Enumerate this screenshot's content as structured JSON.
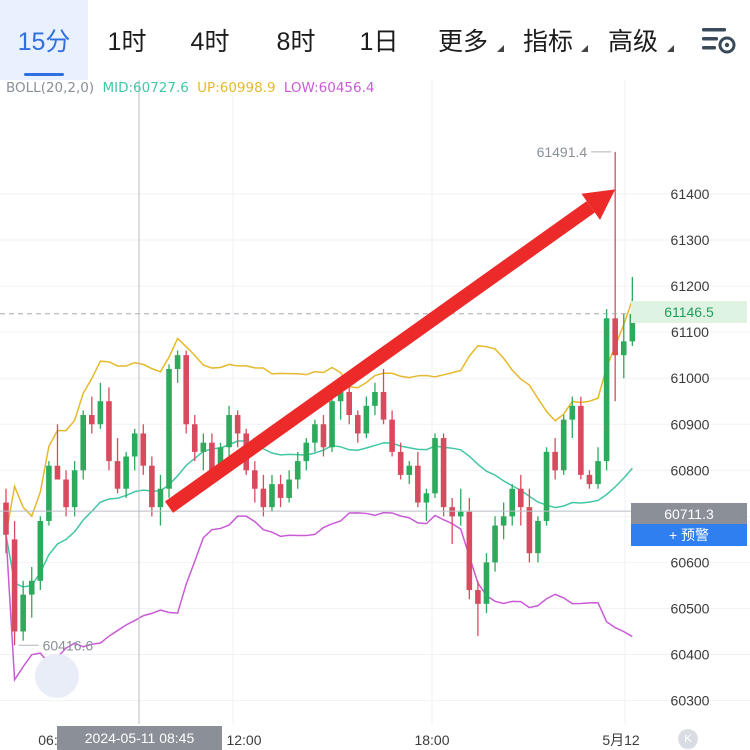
{
  "tabs": [
    {
      "label": "15分",
      "active": true
    },
    {
      "label": "1时"
    },
    {
      "label": "4时"
    },
    {
      "label": "8时"
    },
    {
      "label": "1日"
    },
    {
      "label": "更多",
      "dropdown": true
    },
    {
      "label": "指标",
      "dropdown": true
    },
    {
      "label": "高级",
      "dropdown": true
    }
  ],
  "indicator": {
    "name": "BOLL(20,2,0)",
    "mid": "MID:60727.6",
    "up": "UP:60998.9",
    "low": "LOW:60456.4"
  },
  "labels": {
    "high": "61491.4",
    "low": "60416.6",
    "current_price": "61146.5",
    "crosshair_price": "60711.3",
    "crosshair_time": "2024-05-11 08:45",
    "alert_button": "+ 预警",
    "reset_icon": "K"
  },
  "colors": {
    "up": "#2eaa5c",
    "down": "#d84b5f",
    "mid": "#42c7a6",
    "upper": "#e5b92c",
    "lower": "#c95bd6",
    "arrow": "#ec2a2a",
    "accent": "#2f6fe2"
  },
  "chart_data": {
    "type": "candlestick",
    "interval": "15分",
    "y_ticks": [
      61400,
      61300,
      61200,
      61100,
      61000,
      60900,
      60800,
      60700,
      60600,
      60500,
      60400,
      60300
    ],
    "x_ticks": [
      "06:",
      "12:00",
      "18:00",
      "5月12"
    ],
    "ylim": [
      60260,
      61560
    ],
    "candles": [
      [
        60730,
        60760,
        60620,
        60660
      ],
      [
        60650,
        60690,
        60420,
        60450
      ],
      [
        60450,
        60560,
        60430,
        60530
      ],
      [
        60530,
        60590,
        60480,
        60560
      ],
      [
        60560,
        60700,
        60540,
        60690
      ],
      [
        60690,
        60820,
        60680,
        60810
      ],
      [
        60810,
        60900,
        60780,
        60780
      ],
      [
        60780,
        60800,
        60700,
        60720
      ],
      [
        60720,
        60820,
        60700,
        60800
      ],
      [
        60800,
        60930,
        60780,
        60920
      ],
      [
        60920,
        60960,
        60880,
        60900
      ],
      [
        60900,
        60990,
        60890,
        60950
      ],
      [
        60950,
        60980,
        60800,
        60820
      ],
      [
        60820,
        60870,
        60750,
        60760
      ],
      [
        60760,
        60840,
        60740,
        60830
      ],
      [
        60830,
        60890,
        60800,
        60880
      ],
      [
        60880,
        60900,
        60790,
        60810
      ],
      [
        60810,
        60830,
        60700,
        60720
      ],
      [
        60720,
        60790,
        60680,
        60760
      ],
      [
        60760,
        61030,
        60740,
        61020
      ],
      [
        61020,
        61060,
        60990,
        61050
      ],
      [
        61050,
        61060,
        60880,
        60900
      ],
      [
        60900,
        60920,
        60820,
        60840
      ],
      [
        60840,
        60880,
        60800,
        60860
      ],
      [
        60860,
        60880,
        60790,
        60800
      ],
      [
        60800,
        60860,
        60790,
        60850
      ],
      [
        60850,
        60940,
        60830,
        60920
      ],
      [
        60920,
        60930,
        60850,
        60880
      ],
      [
        60880,
        60890,
        60790,
        60800
      ],
      [
        60800,
        60820,
        60730,
        60760
      ],
      [
        60760,
        60790,
        60700,
        60720
      ],
      [
        60720,
        60790,
        60710,
        60770
      ],
      [
        60770,
        60790,
        60720,
        60740
      ],
      [
        60740,
        60800,
        60730,
        60780
      ],
      [
        60780,
        60840,
        60760,
        60820
      ],
      [
        60820,
        60870,
        60800,
        60860
      ],
      [
        60860,
        60910,
        60840,
        60900
      ],
      [
        60900,
        60920,
        60830,
        60850
      ],
      [
        60850,
        60960,
        60840,
        60950
      ],
      [
        60950,
        60990,
        60910,
        60970
      ],
      [
        60970,
        61010,
        60900,
        60920
      ],
      [
        60920,
        60930,
        60860,
        60880
      ],
      [
        60880,
        60960,
        60870,
        60940
      ],
      [
        60940,
        60990,
        60920,
        60970
      ],
      [
        60970,
        61020,
        60900,
        60910
      ],
      [
        60910,
        60930,
        60830,
        60840
      ],
      [
        60840,
        60860,
        60780,
        60790
      ],
      [
        60790,
        60820,
        60770,
        60810
      ],
      [
        60810,
        60840,
        60720,
        60730
      ],
      [
        60730,
        60760,
        60690,
        60750
      ],
      [
        60750,
        60880,
        60740,
        60870
      ],
      [
        60870,
        60880,
        60700,
        60720
      ],
      [
        60720,
        60740,
        60640,
        60700
      ],
      [
        60700,
        60760,
        60680,
        60710
      ],
      [
        60710,
        60740,
        60520,
        60540
      ],
      [
        60540,
        60560,
        60440,
        60510
      ],
      [
        60510,
        60620,
        60490,
        60600
      ],
      [
        60600,
        60700,
        60580,
        60680
      ],
      [
        60680,
        60730,
        60650,
        60700
      ],
      [
        60700,
        60770,
        60680,
        60760
      ],
      [
        60760,
        60790,
        60680,
        60720
      ],
      [
        60720,
        60760,
        60600,
        60620
      ],
      [
        60620,
        60700,
        60600,
        60690
      ],
      [
        60690,
        60850,
        60680,
        60840
      ],
      [
        60840,
        60870,
        60780,
        60800
      ],
      [
        60800,
        60920,
        60790,
        60910
      ],
      [
        60910,
        60960,
        60870,
        60940
      ],
      [
        60940,
        60960,
        60780,
        60790
      ],
      [
        60790,
        60800,
        60760,
        60770
      ],
      [
        60770,
        60850,
        60760,
        60820
      ],
      [
        60820,
        61150,
        60800,
        61130
      ],
      [
        61130,
        61491.4,
        60950,
        61050
      ],
      [
        61050,
        61140,
        61000,
        61080
      ],
      [
        61080,
        61220,
        61070,
        61140
      ]
    ],
    "arrow": {
      "from": [
        19,
        60720
      ],
      "to": [
        71,
        61410
      ]
    }
  }
}
